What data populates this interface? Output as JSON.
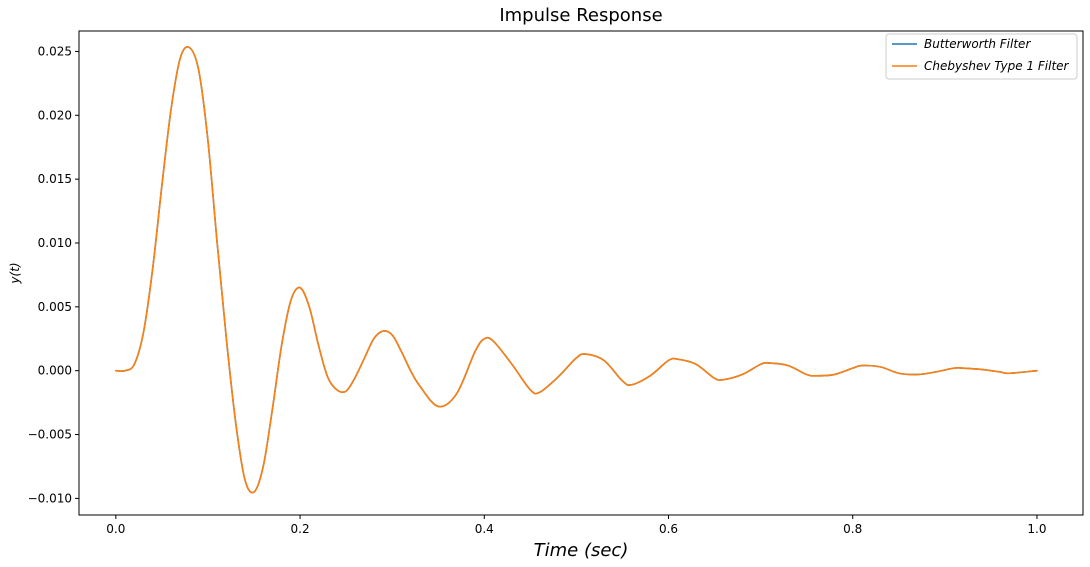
{
  "chart_data": {
    "type": "line",
    "title": "Impulse Response",
    "xlabel": "Time (sec)",
    "ylabel": "y(t)",
    "xlim": [
      -0.04,
      1.05
    ],
    "ylim": [
      -0.0113,
      0.0266
    ],
    "xticks": [
      0.0,
      0.2,
      0.4,
      0.6,
      0.8,
      1.0
    ],
    "xtick_labels": [
      "0.0",
      "0.2",
      "0.4",
      "0.6",
      "0.8",
      "1.0"
    ],
    "yticks": [
      -0.01,
      -0.005,
      0.0,
      0.005,
      0.01,
      0.015,
      0.02,
      0.025
    ],
    "ytick_labels": [
      "−0.010",
      "−0.005",
      "0.000",
      "0.005",
      "0.010",
      "0.015",
      "0.020",
      "0.025"
    ],
    "grid": false,
    "legend_position": "top-right",
    "series": [
      {
        "name": "Butterworth Filter",
        "color": "#1f77b4",
        "x": [
          0.0,
          0.01,
          0.02,
          0.03,
          0.04,
          0.05,
          0.06,
          0.07,
          0.08,
          0.09,
          0.1,
          0.11,
          0.12,
          0.13,
          0.14,
          0.15,
          0.16,
          0.17,
          0.18,
          0.19,
          0.2,
          0.21,
          0.22,
          0.23,
          0.24,
          0.25,
          0.26,
          0.27,
          0.28,
          0.29,
          0.3,
          0.31,
          0.32,
          0.33,
          0.35,
          0.37,
          0.39,
          0.4,
          0.41,
          0.43,
          0.45,
          0.46,
          0.48,
          0.5,
          0.51,
          0.53,
          0.55,
          0.56,
          0.58,
          0.6,
          0.61,
          0.63,
          0.65,
          0.66,
          0.68,
          0.7,
          0.71,
          0.73,
          0.75,
          0.76,
          0.78,
          0.8,
          0.81,
          0.83,
          0.85,
          0.87,
          0.89,
          0.91,
          0.92,
          0.94,
          0.96,
          0.97,
          1.0
        ],
        "y": [
          0.0,
          0.0,
          0.0005,
          0.003,
          0.008,
          0.0145,
          0.0205,
          0.0245,
          0.0253,
          0.0235,
          0.018,
          0.01,
          0.0025,
          -0.004,
          -0.0085,
          -0.0095,
          -0.0075,
          -0.003,
          0.002,
          0.0055,
          0.0065,
          0.005,
          0.002,
          -0.0005,
          -0.0015,
          -0.0016,
          -0.0005,
          0.001,
          0.0025,
          0.0031,
          0.0028,
          0.0015,
          0.0,
          -0.0012,
          -0.0028,
          -0.0018,
          0.0015,
          0.0025,
          0.0023,
          0.0005,
          -0.0015,
          -0.0017,
          -0.0005,
          0.001,
          0.0013,
          0.0008,
          -0.0008,
          -0.0011,
          -0.0004,
          0.0008,
          0.0009,
          0.0005,
          -0.0006,
          -0.0007,
          -0.0003,
          0.0005,
          0.0006,
          0.0004,
          -0.0003,
          -0.0004,
          -0.0003,
          0.0002,
          0.0004,
          0.0003,
          -0.0002,
          -0.0003,
          -0.0001,
          0.0002,
          0.0002,
          0.0001,
          -0.0001,
          -0.0002,
          0.0
        ]
      },
      {
        "name": "Chebyshev Type 1 Filter",
        "color": "#ff7f0e",
        "x": [
          0.0,
          0.01,
          0.02,
          0.03,
          0.04,
          0.05,
          0.06,
          0.07,
          0.08,
          0.09,
          0.1,
          0.11,
          0.12,
          0.13,
          0.14,
          0.15,
          0.16,
          0.17,
          0.18,
          0.19,
          0.2,
          0.21,
          0.22,
          0.23,
          0.24,
          0.25,
          0.26,
          0.27,
          0.28,
          0.29,
          0.3,
          0.31,
          0.32,
          0.33,
          0.35,
          0.37,
          0.39,
          0.4,
          0.41,
          0.43,
          0.45,
          0.46,
          0.48,
          0.5,
          0.51,
          0.53,
          0.55,
          0.56,
          0.58,
          0.6,
          0.61,
          0.63,
          0.65,
          0.66,
          0.68,
          0.7,
          0.71,
          0.73,
          0.75,
          0.76,
          0.78,
          0.8,
          0.81,
          0.83,
          0.85,
          0.87,
          0.89,
          0.91,
          0.92,
          0.94,
          0.96,
          0.97,
          1.0
        ],
        "y": [
          0.0,
          0.0,
          0.0005,
          0.003,
          0.008,
          0.0145,
          0.0205,
          0.0245,
          0.0253,
          0.0235,
          0.018,
          0.01,
          0.0025,
          -0.004,
          -0.0085,
          -0.0095,
          -0.0075,
          -0.003,
          0.002,
          0.0055,
          0.0065,
          0.005,
          0.002,
          -0.0005,
          -0.0015,
          -0.0016,
          -0.0005,
          0.001,
          0.0025,
          0.0031,
          0.0028,
          0.0015,
          0.0,
          -0.0012,
          -0.0028,
          -0.0018,
          0.0015,
          0.0025,
          0.0023,
          0.0005,
          -0.0015,
          -0.0017,
          -0.0005,
          0.001,
          0.0013,
          0.0008,
          -0.0008,
          -0.0011,
          -0.0004,
          0.0008,
          0.0009,
          0.0005,
          -0.0006,
          -0.0007,
          -0.0003,
          0.0005,
          0.0006,
          0.0004,
          -0.0003,
          -0.0004,
          -0.0003,
          0.0002,
          0.0004,
          0.0003,
          -0.0002,
          -0.0003,
          -0.0001,
          0.0002,
          0.0002,
          0.0001,
          -0.0001,
          -0.0002,
          0.0
        ]
      }
    ]
  }
}
